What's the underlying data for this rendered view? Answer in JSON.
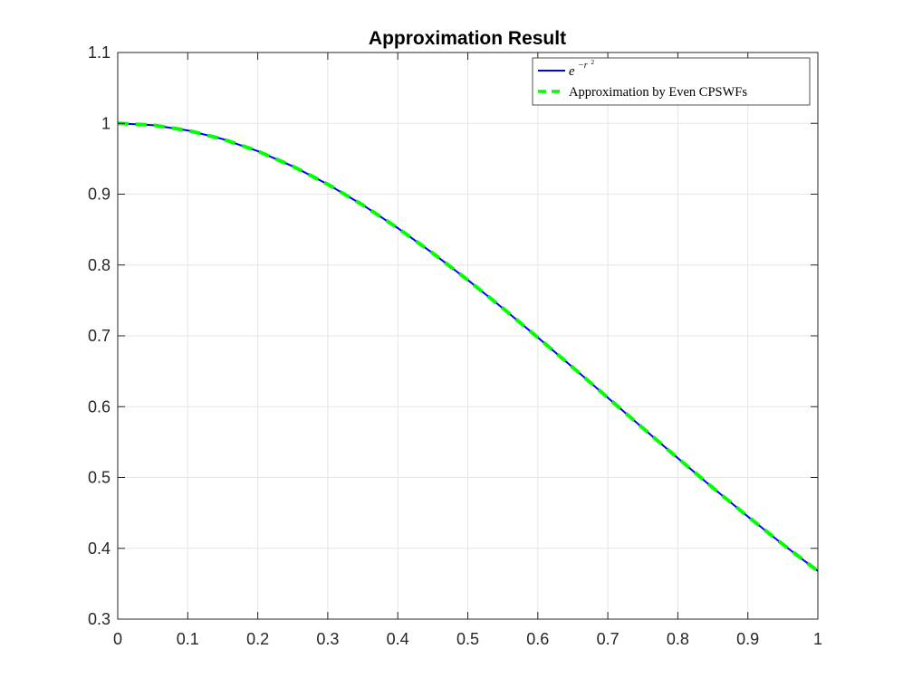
{
  "chart_data": {
    "type": "line",
    "title": "Approximation Result",
    "xlabel": "",
    "ylabel": "",
    "xlim": [
      0,
      1
    ],
    "ylim": [
      0.3,
      1.1
    ],
    "x_ticks": [
      "0",
      "0.1",
      "0.2",
      "0.3",
      "0.4",
      "0.5",
      "0.6",
      "0.7",
      "0.8",
      "0.9",
      "1"
    ],
    "y_ticks": [
      "0.3",
      "0.4",
      "0.5",
      "0.6",
      "0.7",
      "0.8",
      "0.9",
      "1",
      "1.1"
    ],
    "grid": true,
    "legend_position": "top-right",
    "x": [
      0,
      0.05,
      0.1,
      0.15,
      0.2,
      0.25,
      0.3,
      0.35,
      0.4,
      0.45,
      0.5,
      0.55,
      0.6,
      0.65,
      0.7,
      0.75,
      0.8,
      0.85,
      0.9,
      0.95,
      1
    ],
    "series": [
      {
        "name": "e^{-r^2}",
        "color": "#0000ff",
        "style": "solid",
        "values": [
          1.0,
          0.9975,
          0.99,
          0.9778,
          0.9608,
          0.9394,
          0.9139,
          0.8847,
          0.8521,
          0.8167,
          0.7788,
          0.739,
          0.6977,
          0.6554,
          0.6126,
          0.5698,
          0.5273,
          0.4855,
          0.4449,
          0.4056,
          0.3679
        ]
      },
      {
        "name": "Approximation by Even CPSWFs",
        "color": "#00ff00",
        "style": "dashed",
        "values": [
          1.0,
          0.9975,
          0.99,
          0.9778,
          0.9608,
          0.9394,
          0.9139,
          0.8847,
          0.8521,
          0.8167,
          0.7788,
          0.739,
          0.6977,
          0.6554,
          0.6126,
          0.5698,
          0.5273,
          0.4855,
          0.4449,
          0.4056,
          0.3679
        ]
      }
    ],
    "legend": {
      "base": "e",
      "exponent": "−r",
      "power": "2",
      "approx_label": "Approximation by Even CPSWFs"
    }
  }
}
